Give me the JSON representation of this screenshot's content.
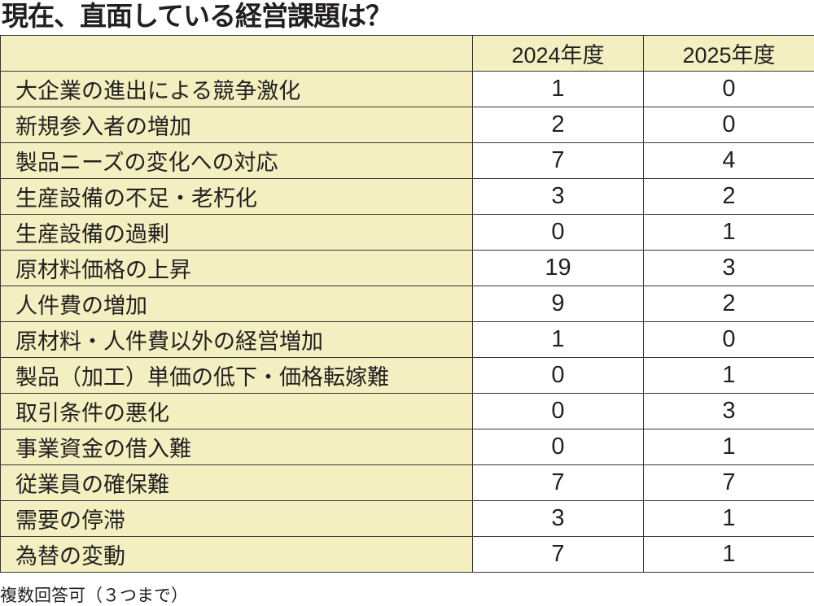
{
  "title": "現在、直面している経営課題は？",
  "footnote": "複数回答可（３つまで）",
  "chart_data": {
    "type": "table",
    "title": "現在、直面している経営課題は？",
    "columns": [
      "",
      "2024年度",
      "2025年度"
    ],
    "rows": [
      {
        "label": "大企業の進出による競争激化",
        "values": [
          "1",
          "0"
        ]
      },
      {
        "label": "新規参入者の増加",
        "values": [
          "2",
          "0"
        ]
      },
      {
        "label": "製品ニーズの変化への対応",
        "values": [
          "7",
          "4"
        ]
      },
      {
        "label": "生産設備の不足・老朽化",
        "values": [
          "3",
          "2"
        ]
      },
      {
        "label": "生産設備の過剰",
        "values": [
          "0",
          "1"
        ]
      },
      {
        "label": "原材料価格の上昇",
        "values": [
          "19",
          "3"
        ]
      },
      {
        "label": "人件費の増加",
        "values": [
          "9",
          "2"
        ]
      },
      {
        "label": "原材料・人件費以外の経営増加",
        "values": [
          "1",
          "0"
        ]
      },
      {
        "label": "製品（加工）単価の低下・価格転嫁難",
        "values": [
          "0",
          "1"
        ]
      },
      {
        "label": "取引条件の悪化",
        "values": [
          "0",
          "3"
        ]
      },
      {
        "label": "事業資金の借入難",
        "values": [
          "0",
          "1"
        ]
      },
      {
        "label": "従業員の確保難",
        "values": [
          "7",
          "7"
        ]
      },
      {
        "label": "需要の停滞",
        "values": [
          "3",
          "1"
        ]
      },
      {
        "label": "為替の変動",
        "values": [
          "7",
          "1"
        ]
      }
    ],
    "colors": {
      "label_bg": "#f3efc0",
      "value_bg": "#ffffff",
      "border": "#3a3630"
    }
  }
}
